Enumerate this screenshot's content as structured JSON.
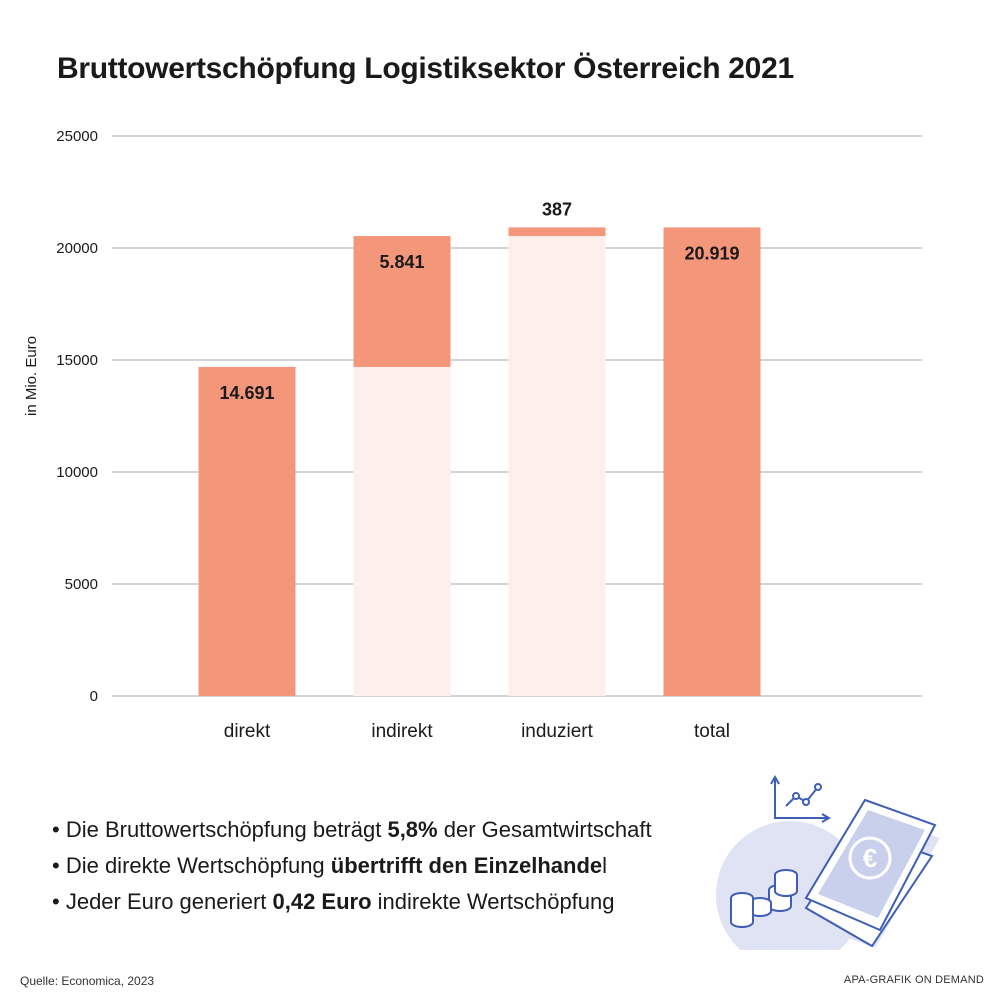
{
  "title": "Bruttowertschöpfung Logistiksektor Österreich 2021",
  "chart_data": {
    "type": "bar",
    "subtype": "waterfall",
    "categories": [
      "direkt",
      "indirekt",
      "induziert",
      "total"
    ],
    "bars": [
      {
        "category": "direkt",
        "base": 0,
        "value": 14691,
        "label": "14.691",
        "kind": "total"
      },
      {
        "category": "indirekt",
        "base": 14691,
        "value": 5841,
        "label": "5.841",
        "kind": "increment"
      },
      {
        "category": "induziert",
        "base": 20532,
        "value": 387,
        "label": "387",
        "kind": "increment"
      },
      {
        "category": "total",
        "base": 0,
        "value": 20919,
        "label": "20.919",
        "kind": "total"
      }
    ],
    "ylabel": "in Mio. Euro",
    "ylim": [
      0,
      25000
    ],
    "yticks": [
      0,
      5000,
      10000,
      15000,
      20000,
      25000
    ],
    "grid": true,
    "colors": {
      "bar": "#f4967a",
      "base_fill": "#fdf0ec",
      "grid": "#a9a9a9"
    }
  },
  "bullets": [
    {
      "pre": "Die Bruttowertschöpfung beträgt ",
      "bold": "5,8%",
      "post": " der Gesamtwirtschaft"
    },
    {
      "pre": "Die direkte Wertschöpfung ",
      "bold": "übertrifft den Einzelhande",
      "post": "l"
    },
    {
      "pre": "Jeder Euro generiert ",
      "bold": "0,42 Euro",
      "post": " indirekte Wertschöpfung"
    }
  ],
  "bullet_symbol": "•",
  "source": "Quelle: Economica, 2023",
  "credit": "APA-GRAFIK ON DEMAND",
  "illustration": {
    "icons": [
      "line-chart-icon",
      "banknote-euro-icon",
      "coins-icon"
    ],
    "euro_symbol": "€"
  }
}
